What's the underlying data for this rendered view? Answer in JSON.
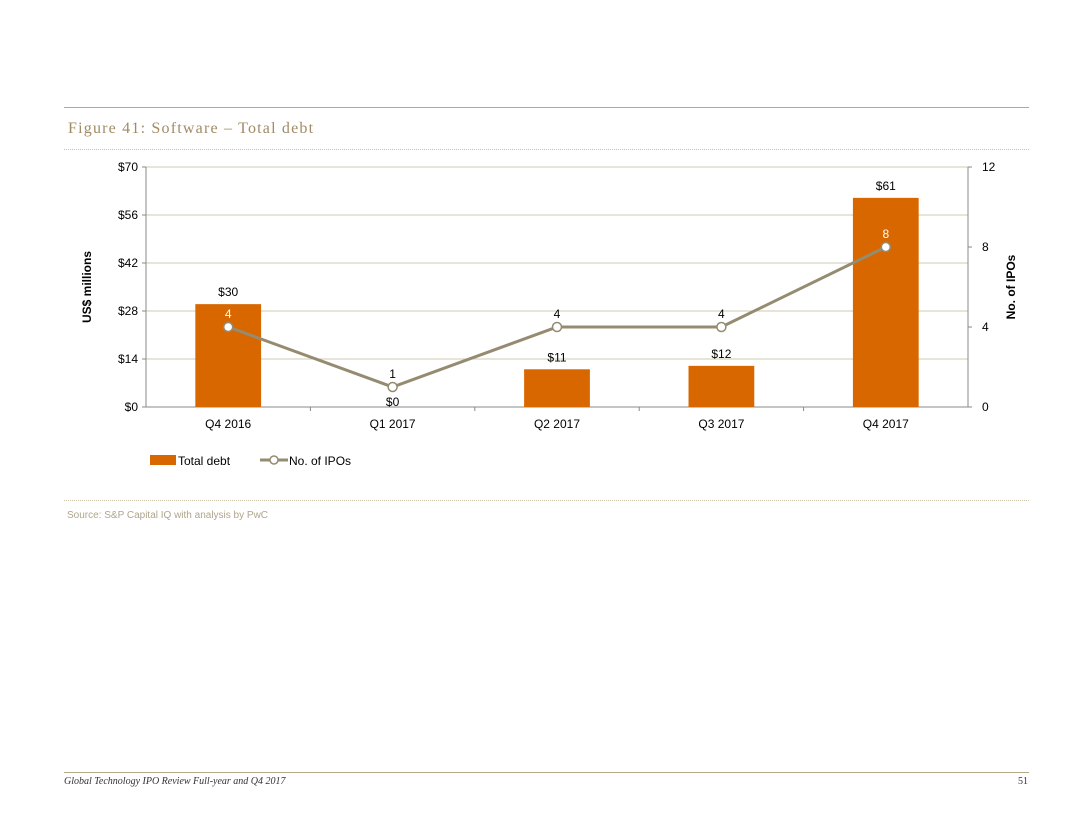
{
  "figure": {
    "title": "Figure 41: Software – Total debt"
  },
  "source": "Source: S&P Capital IQ with analysis by PwC",
  "footer": {
    "title": "Global Technology IPO Review Full-year and Q4 2017",
    "page": "51"
  },
  "colors": {
    "bar": "#d96700",
    "line": "#958b71",
    "grid": "#cfc8b0"
  },
  "chart_data": {
    "type": "bar",
    "categories": [
      "Q4 2016",
      "Q1 2017",
      "Q2 2017",
      "Q3 2017",
      "Q4 2017"
    ],
    "series": [
      {
        "name": "Total debt",
        "type": "bar",
        "axis": "left",
        "values": [
          30,
          0,
          11,
          12,
          61
        ],
        "labels": [
          "$30",
          "$0",
          "$11",
          "$12",
          "$61"
        ]
      },
      {
        "name": "No. of IPOs",
        "type": "line",
        "axis": "right",
        "values": [
          4,
          1,
          4,
          4,
          8
        ],
        "labels": [
          "4",
          "1",
          "4",
          "4",
          "8"
        ]
      }
    ],
    "ylabel": "US$ millions",
    "y2label": "No. of IPOs",
    "ylim": [
      0,
      70
    ],
    "y2lim": [
      0,
      12
    ],
    "yticks": [
      "$0",
      "$14",
      "$28",
      "$42",
      "$56",
      "$70"
    ],
    "y2ticks": [
      "0",
      "4",
      "8",
      "12"
    ],
    "grid": true,
    "legend": "bottom-left"
  }
}
